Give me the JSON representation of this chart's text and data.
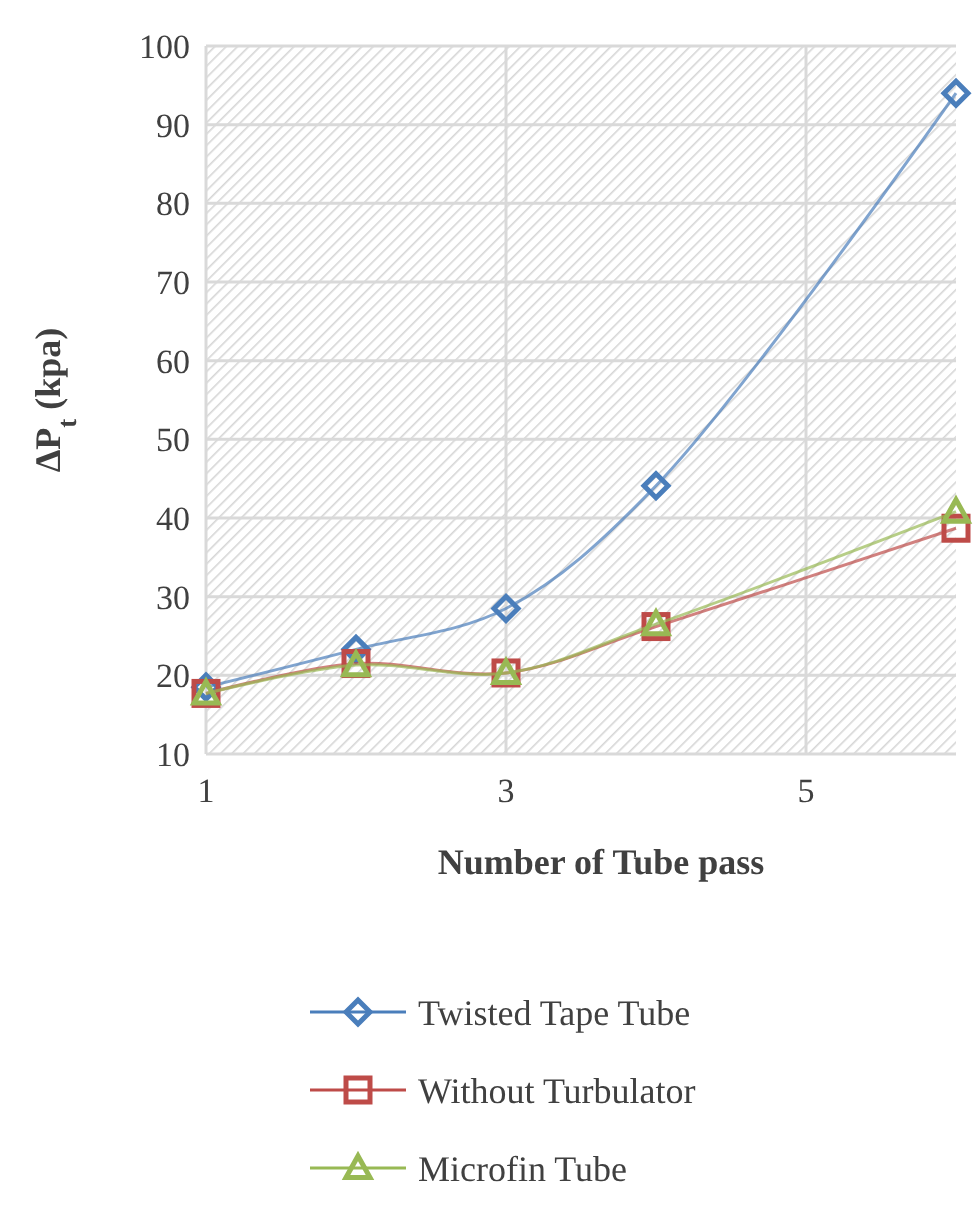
{
  "chart_data": {
    "type": "line",
    "xlabel": "Number of Tube pass",
    "ylabel": "ΔP$_{t}$ (kpa)",
    "x": [
      1,
      2,
      3,
      4,
      6
    ],
    "series": [
      {
        "name": "Twisted Tape Tube",
        "color": "#4a7ebb",
        "values": [
          18.5,
          23.3,
          28.5,
          44.1,
          94
        ],
        "marker": "diamond"
      },
      {
        "name": "Without Turbulator",
        "color": "#be4b48",
        "values": [
          17.7,
          21.5,
          20.3,
          26.2,
          38.7
        ],
        "marker": "square"
      },
      {
        "name": "Microfin Tube",
        "color": "#98b954",
        "values": [
          17.7,
          21.3,
          20.3,
          26.5,
          40.8
        ],
        "marker": "triangle"
      }
    ],
    "xlim": [
      1,
      6
    ],
    "xticks": [
      1,
      3,
      5
    ],
    "ylim": [
      10,
      100
    ],
    "yticks": [
      10,
      20,
      30,
      40,
      50,
      60,
      70,
      80,
      90,
      100
    ],
    "grid": true,
    "legend": "bottom"
  }
}
